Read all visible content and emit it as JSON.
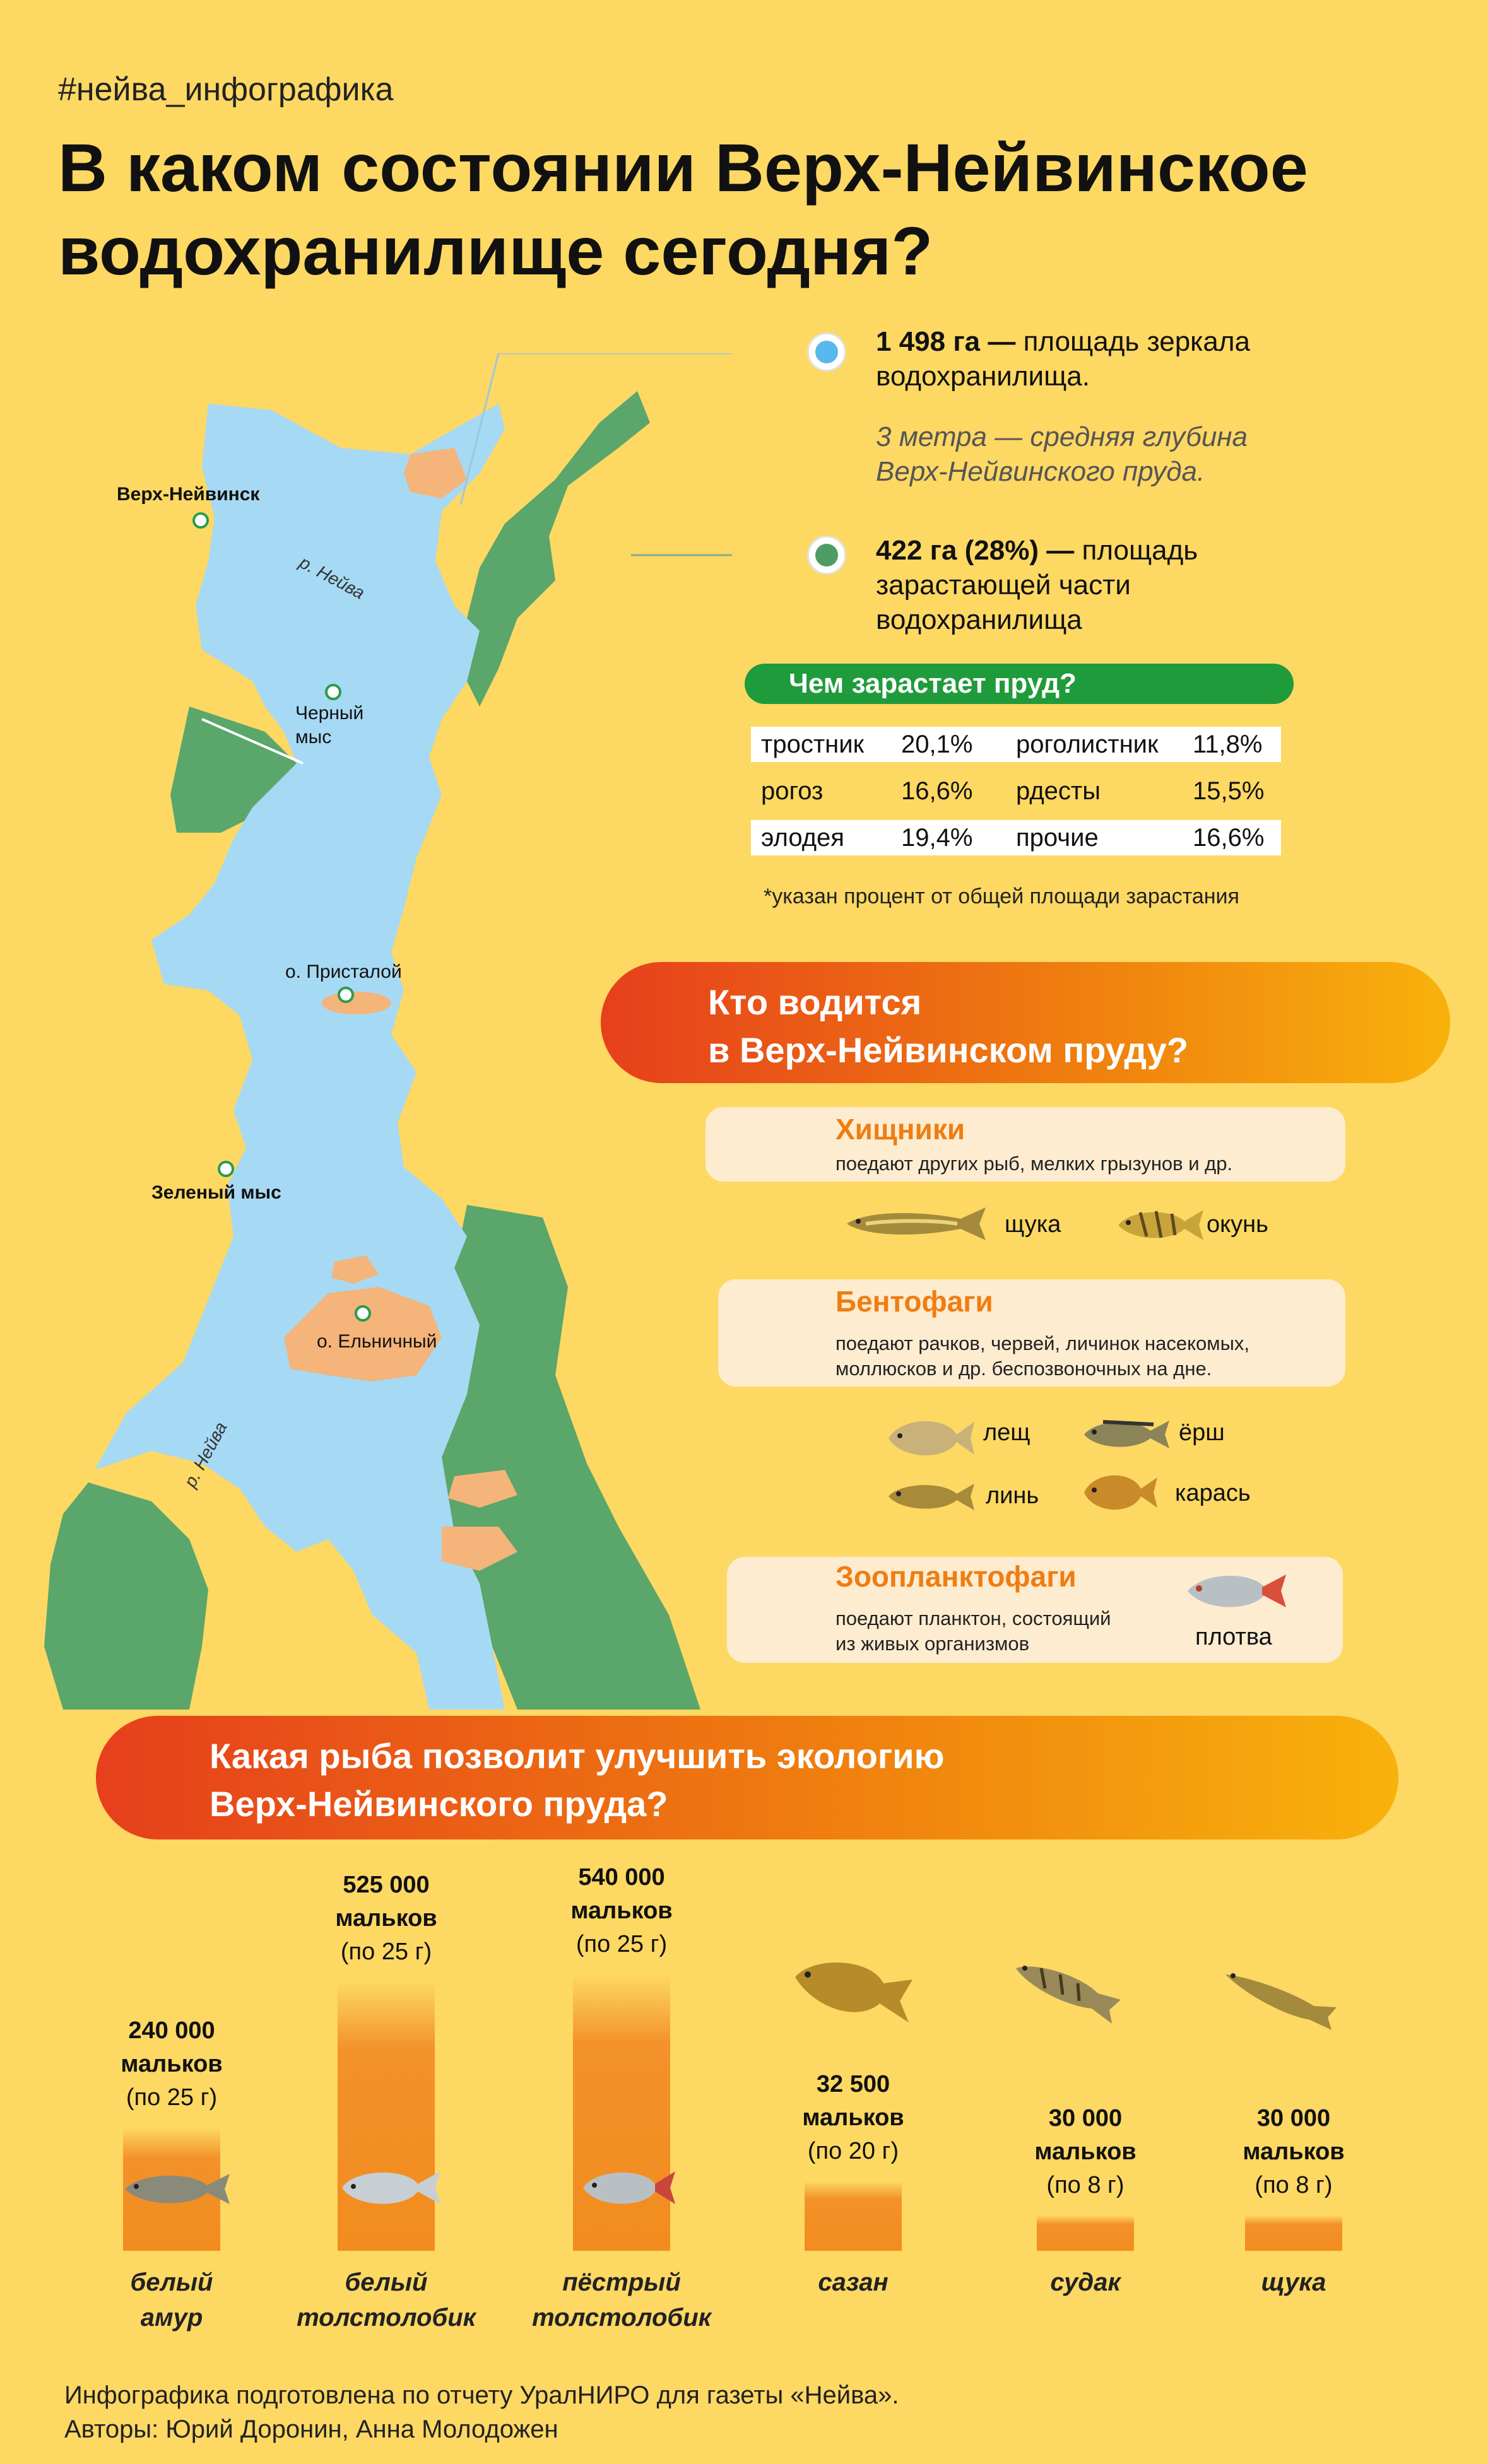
{
  "hashtag": "#нейва_инфографика",
  "title": {
    "line1": "В каком состоянии Верх-Нейвинское",
    "line2": "водохранилище сегодня?"
  },
  "map": {
    "places": [
      {
        "label": "Верх-Нейвинск",
        "bold": true
      },
      {
        "label": "Черный",
        "label2": "мыс"
      },
      {
        "label": "о. Присталой"
      },
      {
        "label": "Зеленый мыс",
        "bold": true
      },
      {
        "label": "о. Ельничный"
      }
    ],
    "river_labels": [
      "р. Нейва",
      "р. Нейва"
    ]
  },
  "stats": {
    "water_area_value": "1 498 га —",
    "water_area_text1": "площадь зеркала",
    "water_area_text2": "водохранилища.",
    "depth_line1": "3 метра — средняя глубина",
    "depth_line2": "Верх-Нейвинского пруда.",
    "overgrown_value": "422 га (28%) —",
    "overgrown_text1": "площадь",
    "overgrown_text2": "зарастающей части",
    "overgrown_text3": "водохранилища"
  },
  "plants": {
    "title": "Чем зарастает пруд?",
    "rows": [
      {
        "n1": "тростник",
        "v1": "20,1%",
        "n2": "роголистник",
        "v2": "11,8%"
      },
      {
        "n1": "рогоз",
        "v1": "16,6%",
        "n2": "рдесты",
        "v2": "15,5%"
      },
      {
        "n1": "элодея",
        "v1": "19,4%",
        "n2": "прочие",
        "v2": "16,6%"
      }
    ],
    "footnote": "*указан процент от общей площади зарастания"
  },
  "who": {
    "line1": "Кто водится",
    "line2": "в Верх-Нейвинском пруду?"
  },
  "categories": {
    "predators": {
      "title": "Хищники",
      "desc": "поедают других рыб, мелких грызунов и др.",
      "fish": [
        "щука",
        "окунь"
      ]
    },
    "benthophages": {
      "title": "Бентофаги",
      "desc1": "поедают рачков, червей, личинок насекомых,",
      "desc2": "моллюсков и др. беспозвоночных на дне.",
      "fish": [
        "лещ",
        "ёрш",
        "линь",
        "карась"
      ]
    },
    "zooplankton": {
      "title": "Зоопланктофаги",
      "desc1": "поедают планктон, состоящий",
      "desc2": "из живых организмов",
      "fish": [
        "плотва"
      ]
    }
  },
  "improve": {
    "line1": "Какая рыба позволит улучшить экологию",
    "line2": "Верх-Нейвинского пруда?"
  },
  "stocking": [
    {
      "count": "240 000",
      "unit": "мальков",
      "weight": "(по 25 г)",
      "species1": "белый",
      "species2": "амур",
      "value": 240000
    },
    {
      "count": "525 000",
      "unit": "мальков",
      "weight": "(по 25 г)",
      "species1": "белый",
      "species2": "толстолобик",
      "value": 525000
    },
    {
      "count": "540 000",
      "unit": "мальков",
      "weight": "(по 25 г)",
      "species1": "пёстрый",
      "species2": "толстолобик",
      "value": 540000
    },
    {
      "count": "32 500",
      "unit": "мальков",
      "weight": "(по 20 г)",
      "species1": "сазан",
      "species2": "",
      "value": 32500
    },
    {
      "count": "30 000",
      "unit": "мальков",
      "weight": "(по 8 г)",
      "species1": "судак",
      "species2": "",
      "value": 30000
    },
    {
      "count": "30 000",
      "unit": "мальков",
      "weight": "(по 8 г)",
      "species1": "щука",
      "species2": "",
      "value": 30000
    }
  ],
  "credits": {
    "line1": "Инфографика подготовлена по отчету УралНИРО для газеты «Нейва».",
    "line2": "Авторы: Юрий Доронин, Анна Молодожен"
  },
  "colors": {
    "background": "#fdd863",
    "water": "#a6d9f4",
    "vegetation": "#5aa66b",
    "islands": "#f4b47a",
    "accent_green": "#1f9b3c",
    "accent_orange": "#ef7d12"
  }
}
